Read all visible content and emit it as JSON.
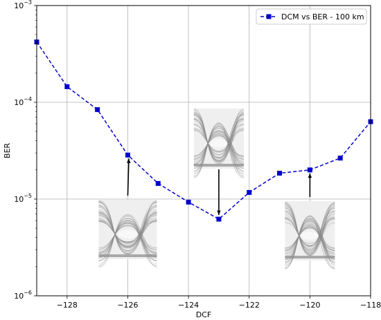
{
  "chart_data": {
    "type": "line",
    "xlabel": "DCF",
    "ylabel": "BER",
    "xlim": [
      -129,
      -118
    ],
    "ylim": [
      1e-06,
      0.001
    ],
    "yscale": "log",
    "grid": true,
    "legend_position": "top-right",
    "x_ticks": [
      -128,
      -126,
      -124,
      -122,
      -120,
      -118
    ],
    "x_tick_labels": [
      "−128",
      "−126",
      "−124",
      "−122",
      "−120",
      "−118"
    ],
    "y_ticks": [
      1e-06,
      1e-05,
      0.0001,
      0.001
    ],
    "y_tick_labels": [
      {
        "base": "10",
        "exp": "−6"
      },
      {
        "base": "10",
        "exp": "−5"
      },
      {
        "base": "10",
        "exp": "−4"
      },
      {
        "base": "10",
        "exp": "−3"
      }
    ],
    "series": [
      {
        "name": "DCM vs BER - 100 km",
        "color": "#0000cc",
        "line_style": "dashed",
        "marker": "square",
        "x": [
          -129,
          -128,
          -127,
          -126,
          -125,
          -124,
          -123,
          -122,
          -121,
          -120,
          -119,
          -118
        ],
        "y": [
          0.00042,
          0.000145,
          8.4e-05,
          2.85e-05,
          1.45e-05,
          9.3e-06,
          6.2e-06,
          1.17e-05,
          1.85e-05,
          2e-05,
          2.65e-05,
          6.3e-05
        ]
      }
    ],
    "annotations": [
      {
        "type": "eye-diagram-inset",
        "points_to_x": -126,
        "points_to_y": 2.85e-05
      },
      {
        "type": "eye-diagram-inset",
        "points_to_x": -123,
        "points_to_y": 6.2e-06
      },
      {
        "type": "eye-diagram-inset",
        "points_to_x": -120,
        "points_to_y": 2e-05
      }
    ]
  }
}
